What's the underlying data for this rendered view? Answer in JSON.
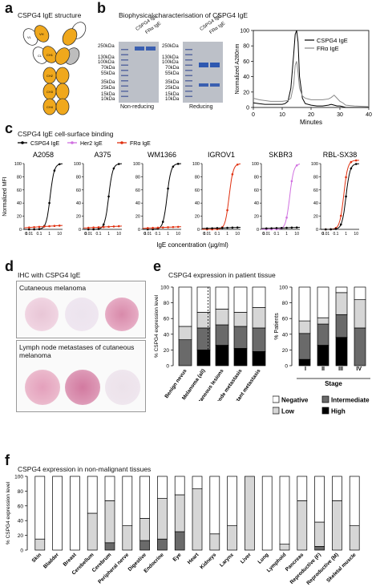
{
  "panels": {
    "a": {
      "letter": "a",
      "title": "CSPG4 IgE structure",
      "domains": [
        "VL",
        "VH",
        "CL",
        "CH1",
        "CH2",
        "CH3",
        "CH4"
      ]
    },
    "b": {
      "letter": "b",
      "title": "Biophysical characterisation of CSPG4 IgE",
      "gel1": {
        "lanes": [
          "CSPG4 IgE",
          "FRα IgE"
        ],
        "label": "Non-reducing",
        "markers": [
          "250kDa",
          "130kDa",
          "100kDa",
          "70kDa",
          "55kDa",
          "35kDa",
          "25kDa",
          "15kDa",
          "10kDa"
        ]
      },
      "gel2": {
        "lanes": [
          "CSPG4 IgE",
          "FRα IgE"
        ],
        "label": "Reducing",
        "markers": [
          "250kDa",
          "130kDa",
          "100kDa",
          "70kDa",
          "55kDa",
          "35kDa",
          "25kDa",
          "15kDa",
          "10kDa"
        ]
      }
    },
    "c": {
      "letter": "c",
      "title": "CSPG4 IgE cell-surface binding"
    },
    "d": {
      "letter": "d",
      "title": "IHC with CSPG4 IgE",
      "section1": "Cutaneous melanoma",
      "section2": "Lymph node metastases of cutaneous melanoma"
    },
    "e": {
      "letter": "e",
      "title": "CSPG4 expression in patient tissue"
    },
    "f": {
      "letter": "f",
      "title": "CSPG4 expression in non-malignant tissues"
    }
  },
  "chart_data": [
    {
      "id": "sec",
      "type": "line",
      "xlabel": "Minutes",
      "ylabel": "Normalized A280nm",
      "xlim": [
        0,
        40
      ],
      "ylim": [
        0,
        100
      ],
      "xticks": [
        0,
        10,
        20,
        30,
        40
      ],
      "yticks": [
        0,
        20,
        40,
        60,
        80,
        100
      ],
      "series": [
        {
          "name": "CSPG4 IgE",
          "color": "#000000",
          "x": [
            0,
            2,
            4,
            6,
            8,
            10,
            11,
            12,
            13,
            14,
            14.5,
            15,
            15.5,
            16,
            17,
            18,
            20,
            22,
            24,
            26,
            27,
            28,
            29,
            30,
            31,
            32,
            35,
            40
          ],
          "y": [
            6,
            5,
            4,
            4,
            4,
            4,
            5,
            8,
            25,
            70,
            95,
            100,
            85,
            40,
            12,
            5,
            3,
            2,
            2,
            3,
            4,
            3,
            2,
            2,
            1,
            0,
            0,
            0
          ]
        },
        {
          "name": "FRα IgE",
          "color": "#888888",
          "x": [
            0,
            2,
            4,
            6,
            8,
            10,
            12,
            13,
            14,
            14.5,
            15,
            15.5,
            16,
            17,
            18,
            20,
            22,
            24,
            26,
            27,
            28,
            29,
            30,
            31,
            32,
            35,
            40
          ],
          "y": [
            12,
            10,
            9,
            8,
            8,
            8,
            9,
            12,
            30,
            55,
            60,
            45,
            25,
            15,
            12,
            10,
            10,
            10,
            11,
            13,
            16,
            12,
            8,
            6,
            3,
            2,
            1
          ]
        }
      ]
    },
    {
      "id": "binding",
      "type": "line",
      "legend": [
        "CSPG4 IgE",
        "Her2 IgE",
        "FRα IgE"
      ],
      "legend_colors": [
        "#000000",
        "#d070e0",
        "#e03010"
      ],
      "ylabel": "Normalized MFI",
      "xlabel": "IgE concentration (µg/ml)",
      "ylim": [
        0,
        100
      ],
      "yticks": [
        0,
        20,
        40,
        60,
        80,
        100
      ],
      "xticks": [
        "0",
        "0.01",
        "0.1",
        "1",
        "10"
      ],
      "cells": [
        {
          "name": "A2058",
          "curves": [
            {
              "color": "#000000",
              "ec50": 1.2,
              "max": 100
            },
            {
              "color": "#e03010",
              "ec50": null,
              "max": 6
            }
          ]
        },
        {
          "name": "A375",
          "curves": [
            {
              "color": "#000000",
              "ec50": 1.0,
              "max": 100
            },
            {
              "color": "#e03010",
              "ec50": null,
              "max": 5
            }
          ]
        },
        {
          "name": "WM1366",
          "curves": [
            {
              "color": "#000000",
              "ec50": 0.8,
              "max": 100
            },
            {
              "color": "#e03010",
              "ec50": null,
              "max": 4
            }
          ]
        },
        {
          "name": "IGROV1",
          "curves": [
            {
              "color": "#e03010",
              "ec50": 1.5,
              "max": 100
            },
            {
              "color": "#000000",
              "ec50": null,
              "max": 3
            }
          ]
        },
        {
          "name": "SKBR3",
          "curves": [
            {
              "color": "#d070e0",
              "ec50": 2.0,
              "max": 100
            },
            {
              "color": "#000000",
              "ec50": null,
              "max": 3
            }
          ]
        },
        {
          "name": "RBL-SX38",
          "curves": [
            {
              "color": "#e03010",
              "ec50": 0.6,
              "max": 105
            },
            {
              "color": "#000000",
              "ec50": 1.0,
              "max": 100
            }
          ]
        }
      ]
    },
    {
      "id": "patient",
      "type": "bar",
      "ylabel": "% CSPG4 expression level",
      "categories": [
        "Benign nevus",
        "Melanoma (all)",
        "Cutaneous lesions",
        "Lymph node metastasis",
        "Distant metastasis"
      ],
      "stacks": {
        "High": [
          0,
          20,
          26,
          22,
          18
        ],
        "Intermediate": [
          33,
          28,
          26,
          28,
          30
        ],
        "Low": [
          17,
          20,
          20,
          18,
          26
        ],
        "Negative": [
          50,
          32,
          28,
          32,
          26
        ]
      },
      "ylim": [
        0,
        100
      ],
      "yticks": [
        0,
        20,
        40,
        60,
        80,
        100
      ]
    },
    {
      "id": "stage",
      "type": "bar",
      "ylabel": "% Patients",
      "xlabel": "Stage",
      "categories": [
        "I",
        "II",
        "III",
        "IV"
      ],
      "stacks": {
        "High": [
          8,
          26,
          36,
          0
        ],
        "Intermediate": [
          33,
          27,
          29,
          48
        ],
        "Low": [
          16,
          8,
          28,
          36
        ],
        "Negative": [
          43,
          39,
          7,
          16
        ]
      },
      "ylim": [
        0,
        100
      ],
      "yticks": [
        0,
        20,
        40,
        60,
        80,
        100
      ],
      "legend": [
        "Negative",
        "Intermediate",
        "Low",
        "High"
      ]
    },
    {
      "id": "normal",
      "type": "bar",
      "ylabel": "% CSPG4 expression level",
      "categories": [
        "Skin",
        "Bladder",
        "Breast",
        "Cerebellum",
        "Cerebrum",
        "Peripheral nerve",
        "Digestive",
        "Endocrine",
        "Eye",
        "Heart",
        "Kidneys",
        "Larynx",
        "Liver",
        "Lung",
        "Lymphoid",
        "Pancreas",
        "Reproductive (F)",
        "Reproductive (M)",
        "Skeletal muscle"
      ],
      "stacks": {
        "Intermediate": [
          0,
          0,
          0,
          0,
          10,
          0,
          13,
          15,
          25,
          0,
          0,
          0,
          0,
          0,
          0,
          0,
          5,
          0,
          0
        ],
        "Low": [
          15,
          0,
          0,
          50,
          57,
          33,
          30,
          55,
          50,
          83,
          22,
          33,
          100,
          0,
          8,
          67,
          33,
          67,
          33
        ],
        "Negative": [
          85,
          100,
          100,
          50,
          33,
          67,
          57,
          30,
          25,
          17,
          78,
          67,
          0,
          100,
          92,
          33,
          62,
          33,
          67
        ]
      },
      "ylim": [
        0,
        100
      ],
      "yticks": [
        0,
        20,
        40,
        60,
        80,
        100
      ]
    }
  ],
  "colors": {
    "High": "#000000",
    "Intermediate": "#6a6a6a",
    "Low": "#d6d6d6",
    "Negative": "#ffffff",
    "orange": "#f0a81c",
    "grey": "#bdbdbd"
  }
}
